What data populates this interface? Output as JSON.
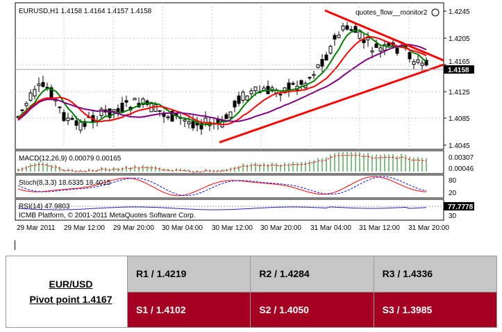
{
  "chart": {
    "symbol_line": "EURUSD,H1  1.4158 1.4164 1.4157 1.4158",
    "indicator_name": "quotes_flow__monitor2",
    "price_ticks": [
      "1.4245",
      "1.4205",
      "1.4165",
      "1.4125",
      "1.4085",
      "1.4045"
    ],
    "current_price": "1.4158",
    "macd": {
      "label": "MACD(12,26,9) 0.00079 0.00165",
      "ticks": [
        "0.00307",
        "0.00046"
      ]
    },
    "stoch": {
      "label": "Stoch(8,3,3) 18.6335 18.4015",
      "ticks": [
        "80",
        "20"
      ]
    },
    "rsi": {
      "label": "RSI(14) 47.9803",
      "ticks": [
        "77.7778",
        "30"
      ]
    },
    "copyright": "ICMB Platform, © 2001-2011 MetaQuotes Software Corp.",
    "time_labels": [
      "29 Mar 2011",
      "29 Mar 12:00",
      "29 Mar 20:00",
      "30 Mar 04:00",
      "30 Mar 12:00",
      "30 Mar 20:00",
      "31 Mar 04:00",
      "31 Mar 12:00",
      "31 Mar 20:00"
    ],
    "colors": {
      "bull_candle": "#ffffff",
      "bear_candle": "#000000",
      "ma_fast": "#008000",
      "ma_mid": "#ff0000",
      "ma_slow": "#800080",
      "trendline": "#ff0000",
      "macd_hist": "#008000",
      "signal": "#ff0000"
    }
  },
  "pivot": {
    "pair": "EUR/USD",
    "pivot_point": "Pivot point 1.4167",
    "resistance": [
      "R1 / 1.4219",
      "R2 / 1.4284",
      "R3 / 1.4336"
    ],
    "support": [
      "S1 / 1.4102",
      "S2 / 1.4050",
      "S3 / 1.3985"
    ],
    "colors": {
      "resistance_bg": "#c6c6c6",
      "support_bg": "#a50021"
    }
  }
}
